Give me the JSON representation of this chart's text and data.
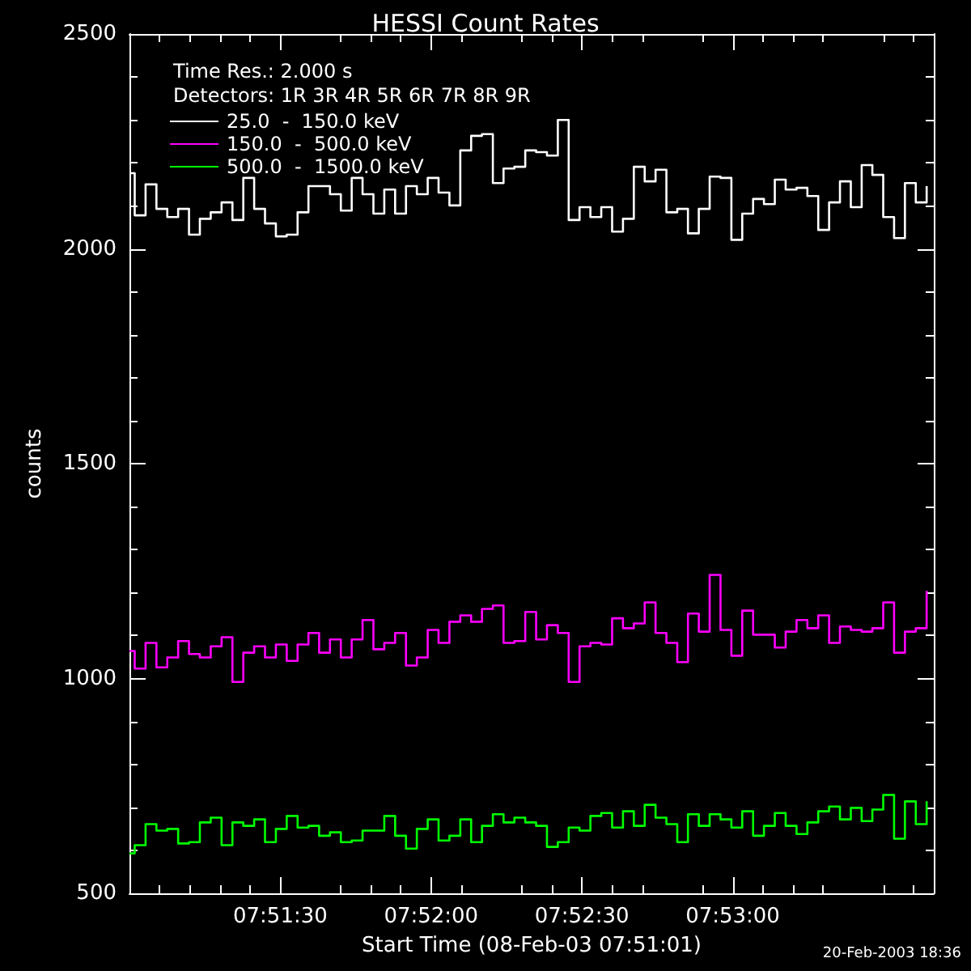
{
  "chart_data": {
    "type": "step",
    "title": "HESSI Count Rates",
    "xlabel": "Start Time (08-Feb-03 07:51:01)",
    "ylabel": "counts",
    "annotations": [
      "Time Res.: 2.000 s",
      "Detectors: 1R 3R 4R 5R 6R 7R 8R 9R",
      "20-Feb-2003 18:36"
    ],
    "x": [
      7.85,
      7.85029,
      7.85089,
      7.85149,
      7.85209,
      7.85269,
      7.85329,
      7.85389,
      7.85449,
      7.85509,
      7.85569,
      7.85629,
      7.85689,
      7.85749,
      7.85809,
      7.85869,
      7.85929,
      7.85989,
      7.86048,
      7.86108,
      7.86168,
      7.86228,
      7.86288,
      7.86348,
      7.86408,
      7.86468,
      7.86528,
      7.86588,
      7.86648,
      7.86708,
      7.86768,
      7.86828,
      7.86888,
      7.86948,
      7.87008,
      7.87067,
      7.87127,
      7.87187,
      7.87247,
      7.87307,
      7.87367,
      7.87427,
      7.87487,
      7.87547,
      7.87607,
      7.87667,
      7.87727,
      7.87787,
      7.87847,
      7.87907,
      7.87967,
      7.88027,
      7.88086,
      7.88146,
      7.88206,
      7.88266,
      7.88326,
      7.88386,
      7.88446,
      7.88506,
      7.88566,
      7.88626,
      7.88686,
      7.88746,
      7.88806,
      7.88866,
      7.88926,
      7.88986,
      7.89046,
      7.89105,
      7.89165,
      7.89225,
      7.89285,
      7.89345,
      7.89405
    ],
    "series": [
      {
        "name": "25.0  -  150.0 keV",
        "color": "#ffffff",
        "values": [
          2176,
          2078,
          2150,
          2093,
          2074,
          2093,
          2033,
          2070,
          2085,
          2108,
          2067,
          2165,
          2093,
          2059,
          2029,
          2033,
          2085,
          2146,
          2146,
          2127,
          2089,
          2165,
          2127,
          2082,
          2138,
          2082,
          2146,
          2127,
          2165,
          2131,
          2101,
          2229,
          2263,
          2267,
          2153,
          2187,
          2191,
          2229,
          2225,
          2217,
          2300,
          2067,
          2097,
          2074,
          2097,
          2040,
          2070,
          2191,
          2157,
          2184,
          2085,
          2093,
          2036,
          2093,
          2168,
          2165,
          2021,
          2082,
          2116,
          2104,
          2161,
          2138,
          2142,
          2123,
          2044,
          2108,
          2157,
          2097,
          2195,
          2172,
          2074,
          2025,
          2153,
          2108,
          2146
        ]
      },
      {
        "name": "150.0  -  500.0 keV",
        "color": "#ff00ff",
        "values": [
          1064,
          1023,
          1083,
          1026,
          1049,
          1087,
          1057,
          1049,
          1075,
          1096,
          992,
          1060,
          1075,
          1049,
          1079,
          1041,
          1079,
          1106,
          1060,
          1091,
          1049,
          1091,
          1136,
          1068,
          1083,
          1106,
          1030,
          1049,
          1113,
          1083,
          1132,
          1147,
          1132,
          1162,
          1170,
          1083,
          1087,
          1155,
          1091,
          1124,
          1106,
          992,
          1075,
          1083,
          1079,
          1140,
          1117,
          1128,
          1177,
          1106,
          1083,
          1038,
          1151,
          1109,
          1241,
          1113,
          1053,
          1158,
          1102,
          1102,
          1072,
          1109,
          1136,
          1117,
          1147,
          1083,
          1121,
          1113,
          1109,
          1117,
          1177,
          1060,
          1109,
          1117,
          1204
        ]
      },
      {
        "name": "500.0  -  1500.0 keV",
        "color": "#00ff00",
        "values": [
          593,
          612,
          661,
          646,
          650,
          616,
          619,
          665,
          676,
          612,
          665,
          657,
          672,
          619,
          650,
          680,
          653,
          657,
          634,
          642,
          619,
          623,
          646,
          646,
          680,
          634,
          604,
          650,
          672,
          623,
          634,
          672,
          619,
          657,
          684,
          665,
          676,
          665,
          657,
          608,
          619,
          653,
          646,
          680,
          687,
          653,
          691,
          657,
          706,
          676,
          661,
          619,
          684,
          657,
          684,
          672,
          653,
          691,
          634,
          657,
          687,
          657,
          638,
          665,
          691,
          702,
          672,
          699,
          668,
          695,
          729,
          627,
          714,
          661,
          714
        ]
      }
    ],
    "xlim": [
      7.85,
      7.894444
    ],
    "xticks": [
      {
        "value": 7.858333,
        "label": "07:51:30"
      },
      {
        "value": 7.866667,
        "label": "07:52:00"
      },
      {
        "value": 7.875,
        "label": "07:52:30"
      },
      {
        "value": 7.883333,
        "label": "07:53:00"
      }
    ],
    "ylim": [
      500,
      2500
    ],
    "yticks": [
      500,
      1000,
      1500,
      2000,
      2500
    ],
    "grid": false,
    "legend": "top left",
    "marker": "none",
    "line_style": "solid"
  }
}
